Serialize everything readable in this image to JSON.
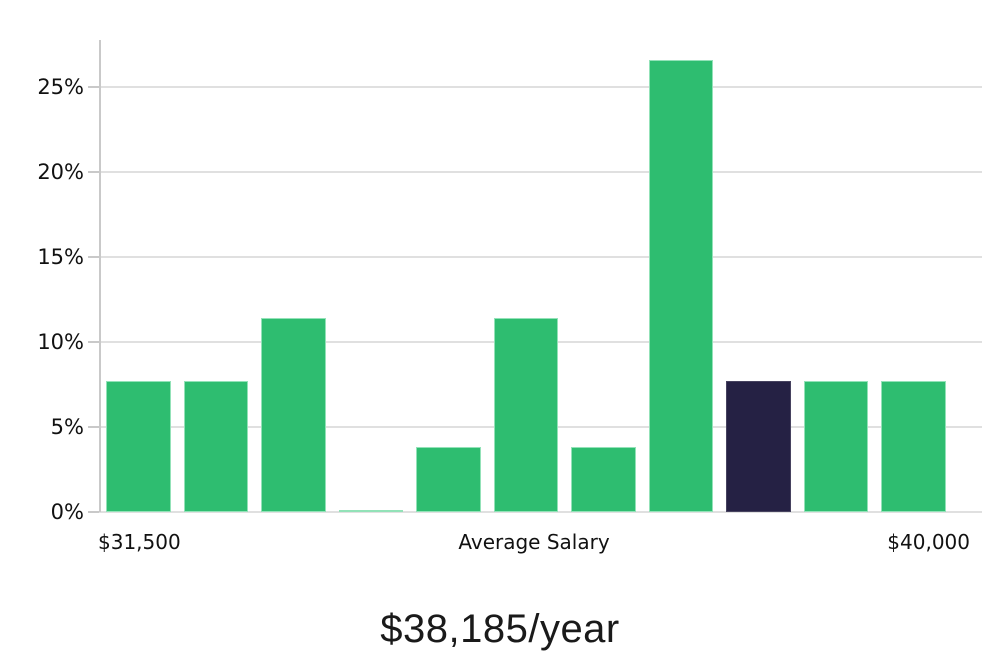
{
  "chart_data": {
    "type": "bar",
    "title": "$38,185/year",
    "values": [
      7.7,
      7.7,
      11.4,
      0.1,
      3.8,
      11.4,
      3.8,
      26.6,
      7.7,
      7.7,
      7.7
    ],
    "highlight_index": 8,
    "y_ticks": [
      {
        "value": 0,
        "label": "0%"
      },
      {
        "value": 5,
        "label": "5%"
      },
      {
        "value": 10,
        "label": "10%"
      },
      {
        "value": 15,
        "label": "15%"
      },
      {
        "value": 20,
        "label": "20%"
      },
      {
        "value": 25,
        "label": "25%"
      }
    ],
    "ylim": [
      0,
      27.75
    ],
    "grid": true,
    "legend_position": "none",
    "x_axis_labels": {
      "left": "$31,500",
      "center": "Average Salary",
      "right": "$40,000"
    },
    "colors": {
      "bar": "#2ebd70",
      "bar_edge": "#93e2b8",
      "highlight": "#252144",
      "highlight_edge": "#46425f",
      "grid": "#e0e0e0",
      "axis": "#c9c9c9",
      "text": "#111111",
      "title_text": "#1a1a1a"
    }
  }
}
